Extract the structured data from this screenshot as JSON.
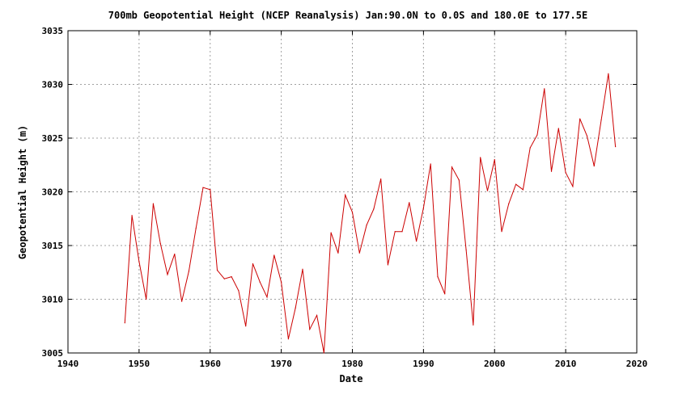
{
  "chart_data": {
    "type": "line",
    "title": "700mb Geopotential Height (NCEP Reanalysis) Jan:90.0N to 0.0S and 180.0E to 177.5E",
    "xlabel": "Date",
    "ylabel": "Geopotential Height (m)",
    "xlim": [
      1940,
      2020
    ],
    "ylim": [
      3005,
      3035
    ],
    "xticks": [
      1940,
      1950,
      1960,
      1970,
      1980,
      1990,
      2000,
      2010,
      2020
    ],
    "yticks": [
      3005,
      3010,
      3015,
      3020,
      3025,
      3030,
      3035
    ],
    "grid": true,
    "line_color": "#cc0000",
    "series": [
      {
        "x": [
          1948,
          1949,
          1950,
          1951,
          1952,
          1953,
          1954,
          1955,
          1956,
          1957,
          1958,
          1959,
          1960,
          1961,
          1962,
          1963,
          1964,
          1965,
          1966,
          1967,
          1968,
          1969,
          1970,
          1971,
          1972,
          1973,
          1974,
          1975,
          1976,
          1977,
          1978,
          1979,
          1980,
          1981,
          1982,
          1983,
          1984,
          1985,
          1986,
          1987,
          1988,
          1989,
          1990,
          1991,
          1992,
          1993,
          1994,
          1995,
          1996,
          1997,
          1998,
          1999,
          2000,
          2001,
          2002,
          2003,
          2004,
          2005,
          2006,
          2007,
          2008,
          2009,
          2010,
          2011,
          2012,
          2013,
          2014,
          2015,
          2016,
          2017
        ],
        "values": [
          3007.8,
          3017.8,
          3013.5,
          3010.0,
          3018.9,
          3015.2,
          3012.3,
          3014.2,
          3009.8,
          3012.6,
          3016.6,
          3020.4,
          3020.2,
          3012.7,
          3011.9,
          3012.1,
          3010.8,
          3007.5,
          3013.3,
          3011.6,
          3010.2,
          3014.1,
          3011.6,
          3006.3,
          3009.2,
          3012.8,
          3007.2,
          3008.5,
          3005.0,
          3016.2,
          3014.3,
          3019.7,
          3018.1,
          3014.3,
          3016.9,
          3018.4,
          3021.2,
          3013.2,
          3016.3,
          3016.3,
          3019.0,
          3015.4,
          3018.5,
          3022.6,
          3012.1,
          3010.5,
          3022.3,
          3021.1,
          3014.6,
          3007.6,
          3023.2,
          3020.1,
          3023.0,
          3016.3,
          3018.9,
          3020.7,
          3020.2,
          3024.1,
          3025.3,
          3029.6,
          3021.9,
          3025.9,
          3021.8,
          3020.5,
          3026.8,
          3025.2,
          3022.4,
          3026.7,
          3031.0,
          3024.2
        ]
      }
    ]
  }
}
